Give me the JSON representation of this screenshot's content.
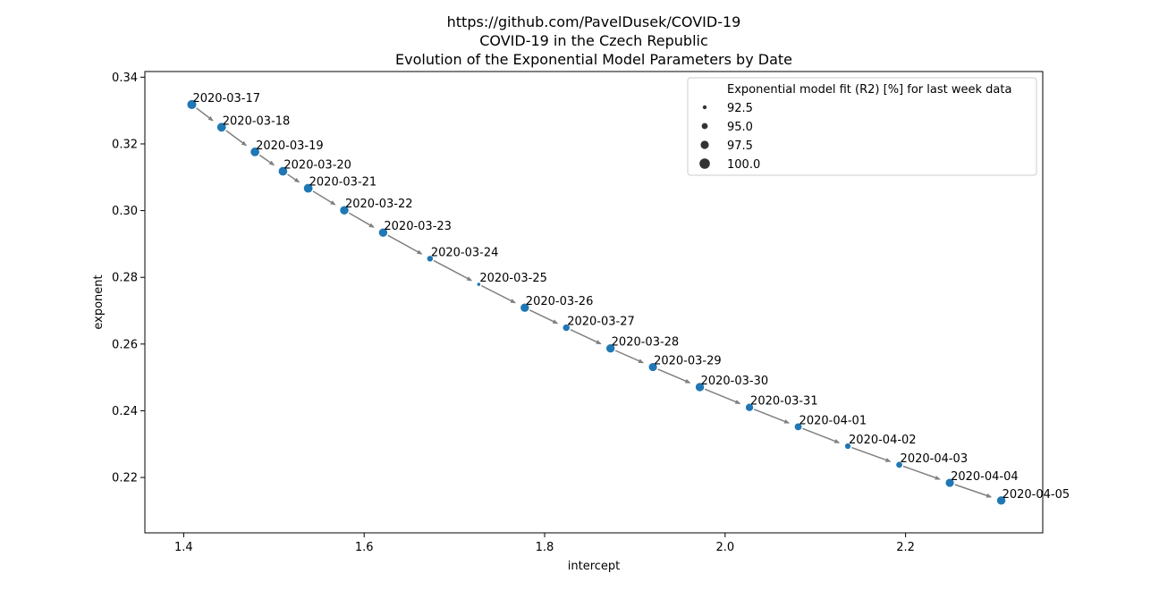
{
  "chart_data": {
    "type": "scatter",
    "title_lines": [
      "https://github.com/PavelDusek/COVID-19",
      "COVID-19 in the Czech Republic",
      "Evolution of the Exponential Model Parameters by Date"
    ],
    "xlabel": "intercept",
    "ylabel": "exponent",
    "xlim": [
      1.357,
      2.352
    ],
    "ylim": [
      0.2034,
      0.3417
    ],
    "xticks": [
      1.4,
      1.6,
      1.8,
      2.0,
      2.2
    ],
    "xtick_labels": [
      "1.4",
      "1.6",
      "1.8",
      "2.0",
      "2.2"
    ],
    "yticks": [
      0.22,
      0.24,
      0.26,
      0.28,
      0.3,
      0.32,
      0.34
    ],
    "ytick_labels": [
      "0.22",
      "0.24",
      "0.26",
      "0.28",
      "0.30",
      "0.32",
      "0.34"
    ],
    "point_color": "#1f77b4",
    "arrow_color": "#808080",
    "legend": {
      "placement": "top-right",
      "title": "Exponential model fit (R2) [%] for last week data",
      "entries": [
        {
          "label": "92.5",
          "value": 92.5
        },
        {
          "label": "95.0",
          "value": 95.0
        },
        {
          "label": "97.5",
          "value": 97.5
        },
        {
          "label": "100.0",
          "value": 100.0
        }
      ]
    },
    "points": [
      {
        "date": "2020-03-17",
        "intercept": 1.409,
        "exponent": 0.3318,
        "r2": 99.3
      },
      {
        "date": "2020-03-18",
        "intercept": 1.442,
        "exponent": 0.325,
        "r2": 99.0
      },
      {
        "date": "2020-03-19",
        "intercept": 1.479,
        "exponent": 0.3176,
        "r2": 98.9
      },
      {
        "date": "2020-03-20",
        "intercept": 1.51,
        "exponent": 0.3118,
        "r2": 98.9
      },
      {
        "date": "2020-03-21",
        "intercept": 1.538,
        "exponent": 0.3067,
        "r2": 99.0
      },
      {
        "date": "2020-03-22",
        "intercept": 1.578,
        "exponent": 0.3001,
        "r2": 98.6
      },
      {
        "date": "2020-03-23",
        "intercept": 1.621,
        "exponent": 0.2934,
        "r2": 98.5
      },
      {
        "date": "2020-03-24",
        "intercept": 1.673,
        "exponent": 0.2856,
        "r2": 95.5
      },
      {
        "date": "2020-03-25",
        "intercept": 1.727,
        "exponent": 0.2779,
        "r2": 92.5
      },
      {
        "date": "2020-03-26",
        "intercept": 1.778,
        "exponent": 0.2709,
        "r2": 98.5
      },
      {
        "date": "2020-03-27",
        "intercept": 1.824,
        "exponent": 0.2649,
        "r2": 96.5
      },
      {
        "date": "2020-03-28",
        "intercept": 1.873,
        "exponent": 0.2587,
        "r2": 98.5
      },
      {
        "date": "2020-03-29",
        "intercept": 1.92,
        "exponent": 0.2531,
        "r2": 98.3
      },
      {
        "date": "2020-03-30",
        "intercept": 1.972,
        "exponent": 0.2471,
        "r2": 98.6
      },
      {
        "date": "2020-03-31",
        "intercept": 2.027,
        "exponent": 0.241,
        "r2": 97.4
      },
      {
        "date": "2020-04-01",
        "intercept": 2.081,
        "exponent": 0.2352,
        "r2": 96.9
      },
      {
        "date": "2020-04-02",
        "intercept": 2.136,
        "exponent": 0.2294,
        "r2": 95.3
      },
      {
        "date": "2020-04-03",
        "intercept": 2.193,
        "exponent": 0.2238,
        "r2": 95.8
      },
      {
        "date": "2020-04-04",
        "intercept": 2.249,
        "exponent": 0.2184,
        "r2": 98.3
      },
      {
        "date": "2020-04-05",
        "intercept": 2.306,
        "exponent": 0.2131,
        "r2": 98.6
      }
    ]
  }
}
